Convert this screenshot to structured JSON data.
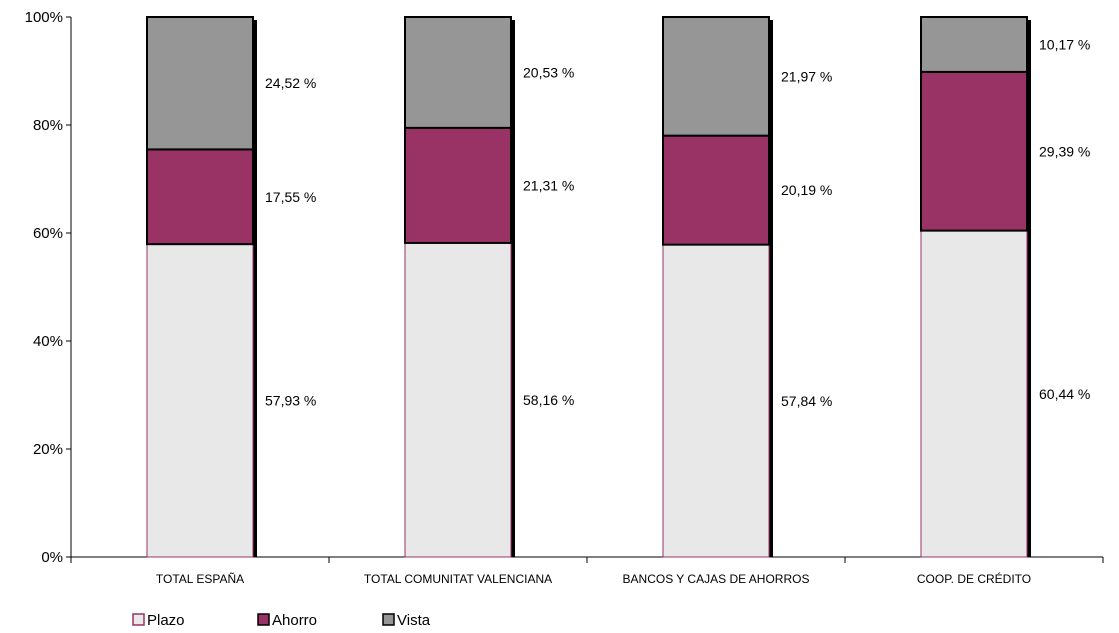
{
  "chart_data": {
    "type": "bar",
    "stacked": true,
    "percent_stacked": true,
    "categories": [
      "TOTAL ESPAÑA",
      "TOTAL COMUNITAT VALENCIANA",
      "BANCOS Y CAJAS DE AHORROS",
      "COOP. DE CRÉDITO"
    ],
    "series": [
      {
        "name": "Plazo",
        "values": [
          57.93,
          58.16,
          57.84,
          60.44
        ],
        "labels": [
          "57,93 %",
          "58,16 %",
          "57,84 %",
          "60,44 %"
        ],
        "color": "#e8e8e8",
        "edge": "#993366"
      },
      {
        "name": "Ahorro",
        "values": [
          17.55,
          21.31,
          20.19,
          29.39
        ],
        "labels": [
          "17,55 %",
          "21,31 %",
          "20,19 %",
          "29,39 %"
        ],
        "color": "#993366",
        "edge": "#000000"
      },
      {
        "name": "Vista",
        "values": [
          24.52,
          20.53,
          21.97,
          10.17
        ],
        "labels": [
          "24,52 %",
          "20,53 %",
          "21,97 %",
          "10,17 %"
        ],
        "color": "#969696",
        "edge": "#000000"
      }
    ],
    "y_ticks": [
      "0%",
      "20%",
      "40%",
      "60%",
      "80%",
      "100%"
    ],
    "ylim": [
      0,
      100
    ],
    "grid": false,
    "legend_position": "bottom-left"
  }
}
